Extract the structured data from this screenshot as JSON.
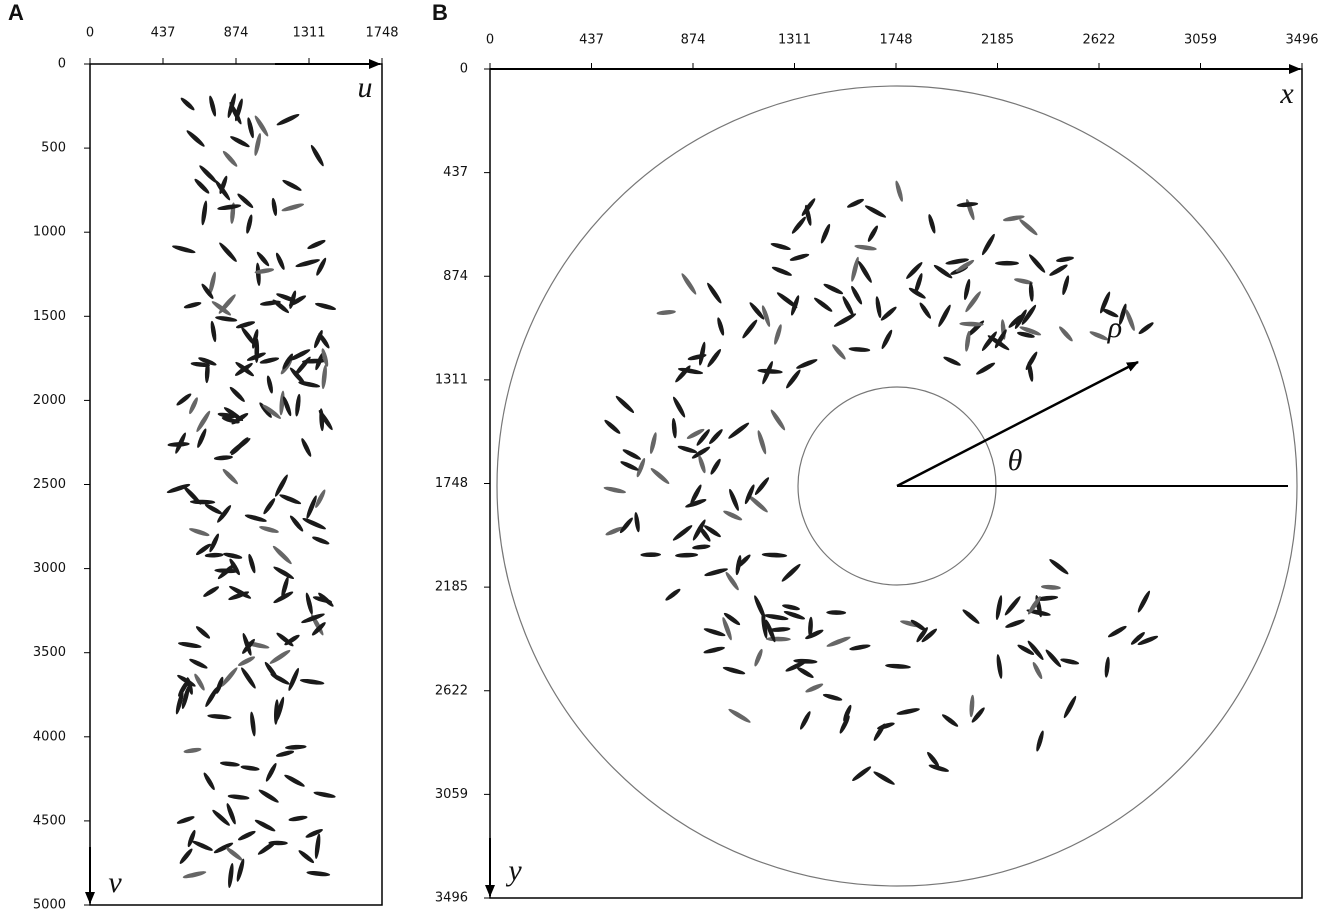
{
  "panels": [
    {
      "label": "A",
      "xlim": [
        0,
        1748
      ],
      "xticks": [
        0,
        437,
        874,
        1311,
        1748
      ],
      "ylim": [
        0,
        5000
      ],
      "yticks": [
        0,
        500,
        1000,
        1500,
        2000,
        2500,
        3000,
        3500,
        4000,
        4500,
        5000
      ],
      "x_axis_label": "u",
      "y_axis_label": "v"
    },
    {
      "label": "B",
      "xlim": [
        0,
        3496
      ],
      "xticks": [
        0,
        437,
        874,
        1311,
        1748,
        2185,
        2622,
        3059,
        3496
      ],
      "ylim": [
        0,
        3496
      ],
      "yticks": [
        0,
        437,
        874,
        1311,
        1748,
        2185,
        2622,
        3059,
        3496
      ],
      "x_axis_label": "x",
      "y_axis_label": "y",
      "radius_label": "ρ",
      "angle_label": "θ"
    }
  ]
}
